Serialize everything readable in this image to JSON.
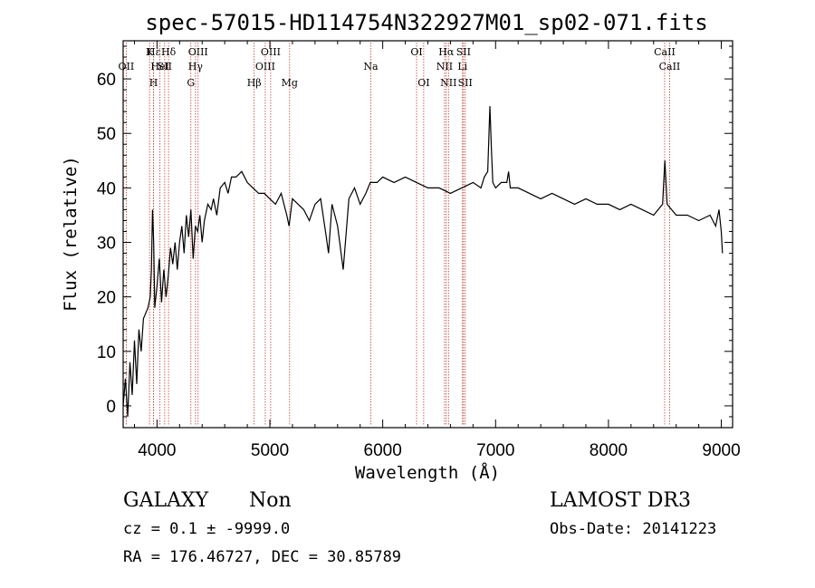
{
  "chart_data": {
    "type": "line",
    "title": "spec-57015-HD114754N322927M01_sp02-071.fits",
    "xlabel": "Wavelength (Å)",
    "ylabel": "Flux (relative)",
    "xlim": [
      3700,
      9100
    ],
    "ylim": [
      -4,
      67
    ],
    "x_ticks": [
      4000,
      5000,
      6000,
      7000,
      8000,
      9000
    ],
    "x_tick_labels": [
      "4000",
      "5000",
      "6000",
      "7000",
      "8000",
      "9000"
    ],
    "y_ticks": [
      0,
      10,
      20,
      30,
      40,
      50,
      60
    ],
    "y_tick_labels": [
      "0",
      "10",
      "20",
      "30",
      "40",
      "50",
      "60"
    ],
    "grid": false,
    "series": [
      {
        "color": "#000000",
        "x": [
          3700,
          3720,
          3740,
          3760,
          3780,
          3800,
          3820,
          3840,
          3860,
          3880,
          3900,
          3920,
          3940,
          3950,
          3960,
          3970,
          3980,
          4000,
          4020,
          4040,
          4060,
          4080,
          4100,
          4120,
          4140,
          4160,
          4180,
          4200,
          4220,
          4240,
          4260,
          4280,
          4300,
          4320,
          4340,
          4360,
          4380,
          4400,
          4420,
          4450,
          4480,
          4500,
          4530,
          4560,
          4600,
          4630,
          4660,
          4700,
          4750,
          4800,
          4850,
          4900,
          4950,
          5000,
          5050,
          5100,
          5150,
          5170,
          5200,
          5250,
          5300,
          5350,
          5400,
          5450,
          5500,
          5520,
          5550,
          5600,
          5650,
          5700,
          5750,
          5800,
          5850,
          5890,
          5950,
          6000,
          6100,
          6200,
          6300,
          6400,
          6500,
          6600,
          6700,
          6800,
          6870,
          6900,
          6930,
          6950,
          6963,
          6975,
          7000,
          7050,
          7100,
          7115,
          7130,
          7200,
          7300,
          7400,
          7500,
          7600,
          7700,
          7800,
          7900,
          8000,
          8100,
          8200,
          8300,
          8400,
          8480,
          8500,
          8520,
          8600,
          8700,
          8800,
          8900,
          8950,
          8980,
          9000,
          9010
        ],
        "y": [
          0,
          5,
          -2,
          8,
          2,
          12,
          4,
          14,
          10,
          16,
          17,
          18,
          20,
          25,
          36,
          30,
          18,
          22,
          27,
          19,
          25,
          20,
          24,
          29,
          26,
          30,
          25,
          30,
          33,
          28,
          35,
          31,
          36,
          27,
          33,
          32,
          35,
          30,
          34,
          37,
          36,
          38,
          35,
          40,
          41,
          39,
          42,
          42,
          43,
          41,
          40,
          39,
          39,
          38,
          37,
          39,
          35,
          33,
          38,
          37,
          36,
          34,
          37,
          38,
          31,
          28,
          37,
          33,
          25,
          38,
          40,
          37,
          39,
          41,
          41,
          42,
          41,
          42,
          41,
          40,
          40,
          39,
          40,
          41,
          40,
          42,
          43,
          55,
          47,
          41,
          40,
          41,
          41,
          43,
          40,
          40,
          39,
          38,
          39,
          38,
          37,
          38,
          37,
          37,
          36,
          37,
          36,
          35,
          37,
          45,
          37,
          35,
          35,
          34,
          35,
          33,
          36,
          32,
          28
        ]
      }
    ],
    "line_markers": [
      {
        "x": 3934,
        "label": "K",
        "row": 1
      },
      {
        "x": 3727,
        "label": "OII",
        "row": 2
      },
      {
        "x": 3970,
        "label": "Hε",
        "row": 1
      },
      {
        "x": 3969,
        "label": "H",
        "row": 3
      },
      {
        "x": 4026,
        "label": "HeI",
        "row": 2
      },
      {
        "x": 4102,
        "label": "Hδ",
        "row": 1
      },
      {
        "x": 4068,
        "label": "SII",
        "row": 2
      },
      {
        "x": 4300,
        "label": "G",
        "row": 3
      },
      {
        "x": 4341,
        "label": "Hγ",
        "row": 2
      },
      {
        "x": 4364,
        "label": "OIII",
        "row": 1
      },
      {
        "x": 4861,
        "label": "Hβ",
        "row": 3
      },
      {
        "x": 4959,
        "label": "OIII",
        "row": 2
      },
      {
        "x": 5007,
        "label": "OIII",
        "row": 1
      },
      {
        "x": 5175,
        "label": "Mg",
        "row": 3
      },
      {
        "x": 5894,
        "label": "Na",
        "row": 2
      },
      {
        "x": 6300,
        "label": "OI",
        "row": 1
      },
      {
        "x": 6363,
        "label": "OI",
        "row": 3
      },
      {
        "x": 6548,
        "label": "NII",
        "row": 2
      },
      {
        "x": 6563,
        "label": "Hα",
        "row": 1
      },
      {
        "x": 6583,
        "label": "NII",
        "row": 3
      },
      {
        "x": 6707,
        "label": "Li",
        "row": 2
      },
      {
        "x": 6716,
        "label": "SII",
        "row": 1
      },
      {
        "x": 6731,
        "label": "SII",
        "row": 3
      },
      {
        "x": 8498,
        "label": "CaII",
        "row": 1
      },
      {
        "x": 8542,
        "label": "CaII",
        "row": 2
      }
    ]
  },
  "footer": {
    "object_class": "GALAXY",
    "subclass": "Non",
    "survey": "LAMOST DR3",
    "cz": "cz = 0.1 ± -9999.0",
    "obs_date": "Obs-Date: 20141223",
    "coords": "RA = 176.46727, DEC =  30.85789"
  }
}
